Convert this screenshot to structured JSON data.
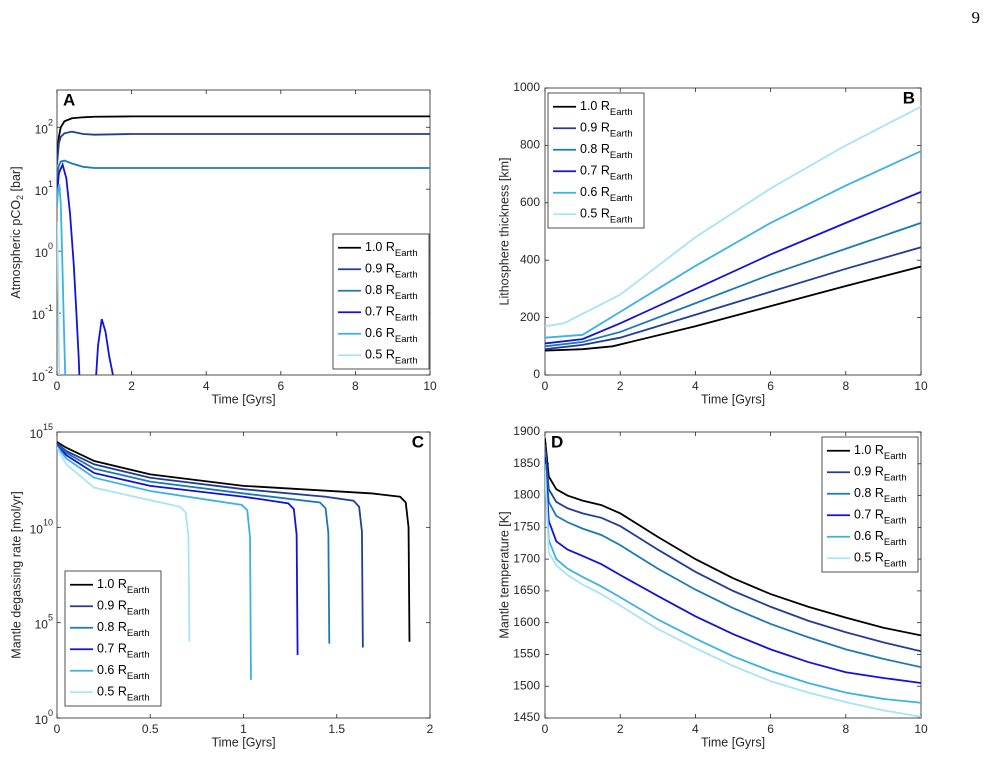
{
  "page_number": "9",
  "chart_data": [
    {
      "type": "line",
      "panel_label": "A",
      "yscale": "log",
      "legend": "southeast",
      "xlabel": "Time [Gyrs]",
      "ylabel": {
        "text": "Atmospheric pCO",
        "sub": "2",
        "tail": " [bar]"
      },
      "xlim": [
        0,
        10
      ],
      "xticks": [
        0,
        2,
        4,
        6,
        8,
        10
      ],
      "ylim": [
        0.01,
        400
      ],
      "yticks": [
        {
          "value": 0.01,
          "label": "10",
          "exponent": "-2"
        },
        {
          "value": 0.1,
          "label": "10",
          "exponent": "-1"
        },
        {
          "value": 1,
          "label": "10",
          "exponent": "0"
        },
        {
          "value": 10,
          "label": "10",
          "exponent": "1"
        },
        {
          "value": 100,
          "label": "10",
          "exponent": "2"
        }
      ],
      "series": [
        {
          "name": "1.0 R",
          "subscript": "Earth",
          "color": "#000000",
          "x": [
            0,
            0.05,
            0.1,
            0.2,
            0.4,
            0.7,
            1,
            2,
            4,
            6,
            8,
            10
          ],
          "values": [
            30,
            70,
            100,
            125,
            140,
            145,
            148,
            150,
            150,
            150,
            150,
            150
          ]
        },
        {
          "name": "0.9 R",
          "subscript": "Earth",
          "color": "#223c98",
          "x": [
            0,
            0.05,
            0.1,
            0.2,
            0.4,
            0.7,
            1,
            2,
            4,
            6,
            8,
            10
          ],
          "values": [
            25,
            55,
            70,
            80,
            85,
            78,
            76,
            78,
            78,
            78,
            78,
            78
          ]
        },
        {
          "name": "0.8 R",
          "subscript": "Earth",
          "color": "#1b79b5",
          "x": [
            0,
            0.05,
            0.1,
            0.2,
            0.4,
            0.7,
            1,
            2,
            4,
            6,
            8,
            10
          ],
          "values": [
            15,
            24,
            28,
            29,
            26,
            23,
            22,
            22,
            22,
            22,
            22,
            22
          ]
        },
        {
          "name": "0.7 R",
          "subscript": "Earth",
          "color": "#1212d8",
          "x": [
            0,
            0.05,
            0.15,
            0.25,
            0.35,
            0.45,
            0.52,
            0.58,
            0.6,
            0.9,
            1.05,
            1.1,
            1.2,
            1.3,
            1.4,
            1.5
          ],
          "values": [
            8,
            18,
            25,
            15,
            4,
            0.6,
            0.1,
            0.02,
            0.01,
            null,
            0.01,
            0.03,
            0.08,
            0.05,
            0.02,
            0.01
          ]
        },
        {
          "name": "0.6 R",
          "subscript": "Earth",
          "color": "#3cb2e4",
          "x": [
            0,
            0.03,
            0.06,
            0.1,
            0.14,
            0.18,
            0.22
          ],
          "values": [
            5,
            10,
            12,
            6,
            0.8,
            0.08,
            0.01
          ]
        },
        {
          "name": "0.5 R",
          "subscript": "Earth",
          "color": "#a9e3f7",
          "x": [
            0,
            0.02,
            0.04,
            0.06
          ],
          "values": [
            3,
            1,
            0.1,
            0.01
          ]
        }
      ]
    },
    {
      "type": "line",
      "panel_label": "B",
      "legend": "northwest",
      "xlabel": "Time [Gyrs]",
      "ylabel": "Lithosphere thickness [km]",
      "xlim": [
        0,
        10
      ],
      "xticks": [
        0,
        2,
        4,
        6,
        8,
        10
      ],
      "ylim": [
        0,
        1000
      ],
      "yticks": [
        0,
        200,
        400,
        600,
        800,
        1000
      ],
      "series": [
        {
          "name": "1.0 R",
          "subscript": "Earth",
          "color": "#000000",
          "x": [
            0,
            1,
            1.8,
            4,
            6,
            8,
            10
          ],
          "values": [
            85,
            90,
            100,
            170,
            240,
            310,
            378
          ]
        },
        {
          "name": "0.9 R",
          "subscript": "Earth",
          "color": "#223c98",
          "x": [
            0,
            1,
            2,
            4,
            6,
            8,
            10
          ],
          "values": [
            90,
            105,
            130,
            210,
            290,
            370,
            445
          ]
        },
        {
          "name": "0.8 R",
          "subscript": "Earth",
          "color": "#1b79b5",
          "x": [
            0,
            1,
            2,
            4,
            6,
            8,
            10
          ],
          "values": [
            100,
            115,
            150,
            250,
            350,
            440,
            530
          ]
        },
        {
          "name": "0.7 R",
          "subscript": "Earth",
          "color": "#1212d8",
          "x": [
            0,
            1,
            2,
            4,
            6,
            8,
            10
          ],
          "values": [
            110,
            125,
            180,
            300,
            420,
            530,
            638
          ]
        },
        {
          "name": "0.6 R",
          "subscript": "Earth",
          "color": "#3cb2e4",
          "x": [
            0,
            1,
            2,
            4,
            6,
            8,
            10
          ],
          "values": [
            130,
            140,
            220,
            380,
            530,
            660,
            780
          ]
        },
        {
          "name": "0.5 R",
          "subscript": "Earth",
          "color": "#a9e3f7",
          "x": [
            0,
            0.5,
            2,
            4,
            6,
            8,
            10
          ],
          "values": [
            170,
            180,
            280,
            480,
            650,
            800,
            935
          ]
        }
      ]
    },
    {
      "type": "line",
      "panel_label": "C",
      "yscale": "log",
      "legend": "southwest",
      "xlabel": "Time [Gyrs]",
      "ylabel": "Mantle degassing rate [mol/yr]",
      "xlim": [
        0,
        2
      ],
      "xticks": [
        0,
        0.5,
        1,
        1.5,
        2
      ],
      "ylim": [
        1,
        1000000000000000.0
      ],
      "yticks": [
        {
          "value": 1,
          "label": "10",
          "exponent": "0"
        },
        {
          "value": 100000,
          "label": "10",
          "exponent": "5"
        },
        {
          "value": 10000000000,
          "label": "10",
          "exponent": "10"
        },
        {
          "value": 1000000000000000.0,
          "label": "10",
          "exponent": "15"
        }
      ],
      "series": [
        {
          "name": "1.0 R",
          "subscript": "Earth",
          "color": "#000000",
          "x": [
            0,
            0.05,
            0.2,
            0.5,
            1.0,
            1.69,
            1.84,
            1.87,
            1.885,
            1.89
          ],
          "values": [
            300000000000000.0,
            150000000000000.0,
            30000000000000.0,
            6000000000000.0,
            1500000000000.0,
            600000000000.0,
            400000000000.0,
            200000000000.0,
            10000000000.0,
            10000
          ]
        },
        {
          "name": "0.9 R",
          "subscript": "Earth",
          "color": "#223c98",
          "x": [
            0,
            0.05,
            0.2,
            0.5,
            1.0,
            1.44,
            1.59,
            1.62,
            1.635,
            1.64
          ],
          "values": [
            250000000000000.0,
            100000000000000.0,
            20000000000000.0,
            4000000000000.0,
            1000000000000.0,
            400000000000.0,
            250000000000.0,
            120000000000.0,
            6000000000.0,
            5000
          ]
        },
        {
          "name": "0.8 R",
          "subscript": "Earth",
          "color": "#1b79b5",
          "x": [
            0,
            0.05,
            0.2,
            0.5,
            1.0,
            1.26,
            1.41,
            1.44,
            1.455,
            1.46
          ],
          "values": [
            220000000000000.0,
            80000000000000.0,
            12000000000000.0,
            2500000000000.0,
            600000000000.0,
            300000000000.0,
            200000000000.0,
            100000000000.0,
            5000000000.0,
            8000
          ]
        },
        {
          "name": "0.7 R",
          "subscript": "Earth",
          "color": "#1212d8",
          "x": [
            0,
            0.05,
            0.2,
            0.5,
            1.0,
            1.09,
            1.24,
            1.27,
            1.285,
            1.29
          ],
          "values": [
            200000000000000.0,
            60000000000000.0,
            7000000000000.0,
            1500000000000.0,
            400000000000.0,
            300000000000.0,
            180000000000.0,
            90000000000.0,
            4000000000.0,
            2000
          ]
        },
        {
          "name": "0.6 R",
          "subscript": "Earth",
          "color": "#3cb2e4",
          "x": [
            0,
            0.05,
            0.2,
            0.5,
            0.84,
            0.99,
            1.02,
            1.035,
            1.04
          ],
          "values": [
            180000000000000.0,
            40000000000000.0,
            4000000000000.0,
            800000000000.0,
            250000000000.0,
            150000000000.0,
            80000000000.0,
            3000000000.0,
            100
          ]
        },
        {
          "name": "0.5 R",
          "subscript": "Earth",
          "color": "#a9e3f7",
          "x": [
            0,
            0.05,
            0.2,
            0.51,
            0.66,
            0.69,
            0.705,
            0.71
          ],
          "values": [
            150000000000000.0,
            20000000000000.0,
            1200000000000.0,
            250000000000.0,
            120000000000.0,
            60000000000.0,
            3000000000.0,
            10000
          ]
        }
      ]
    },
    {
      "type": "line",
      "panel_label": "D",
      "legend": "northeast",
      "xlabel": "Time [Gyrs]",
      "ylabel": "Mantle temperature [K]",
      "xlim": [
        0,
        10
      ],
      "xticks": [
        0,
        2,
        4,
        6,
        8,
        10
      ],
      "ylim": [
        1450,
        1900
      ],
      "yticks": [
        1450,
        1500,
        1550,
        1600,
        1650,
        1700,
        1750,
        1800,
        1850,
        1900
      ],
      "series": [
        {
          "name": "1.0 R",
          "subscript": "Earth",
          "color": "#000000",
          "x": [
            0,
            0.1,
            0.3,
            0.6,
            1,
            1.5,
            2,
            3,
            4,
            5,
            6,
            7,
            8,
            9,
            10
          ],
          "values": [
            1890,
            1830,
            1810,
            1800,
            1792,
            1785,
            1772,
            1735,
            1700,
            1670,
            1645,
            1625,
            1608,
            1592,
            1580
          ]
        },
        {
          "name": "0.9 R",
          "subscript": "Earth",
          "color": "#223c98",
          "x": [
            0,
            0.1,
            0.3,
            0.6,
            1,
            1.5,
            2,
            3,
            4,
            5,
            6,
            7,
            8,
            9,
            10
          ],
          "values": [
            1880,
            1810,
            1790,
            1780,
            1772,
            1765,
            1752,
            1715,
            1680,
            1650,
            1625,
            1603,
            1585,
            1569,
            1555
          ]
        },
        {
          "name": "0.8 R",
          "subscript": "Earth",
          "color": "#1b79b5",
          "x": [
            0,
            0.1,
            0.3,
            0.6,
            1,
            1.5,
            2,
            3,
            4,
            5,
            6,
            7,
            8,
            9,
            10
          ],
          "values": [
            1870,
            1790,
            1768,
            1758,
            1748,
            1738,
            1722,
            1685,
            1652,
            1623,
            1598,
            1577,
            1558,
            1543,
            1530
          ]
        },
        {
          "name": "0.7 R",
          "subscript": "Earth",
          "color": "#1212d8",
          "x": [
            0,
            0.1,
            0.3,
            0.6,
            1,
            1.5,
            2,
            3,
            4,
            5,
            6,
            7,
            8,
            9,
            10
          ],
          "values": [
            1860,
            1760,
            1728,
            1715,
            1705,
            1692,
            1675,
            1642,
            1610,
            1582,
            1558,
            1538,
            1522,
            1513,
            1505
          ]
        },
        {
          "name": "0.6 R",
          "subscript": "Earth",
          "color": "#3cb2e4",
          "x": [
            0,
            0.1,
            0.3,
            0.6,
            1,
            1.5,
            2,
            3,
            4,
            5,
            6,
            7,
            8,
            9,
            10
          ],
          "values": [
            1850,
            1730,
            1700,
            1685,
            1672,
            1657,
            1640,
            1605,
            1575,
            1547,
            1524,
            1505,
            1490,
            1480,
            1474
          ]
        },
        {
          "name": "0.5 R",
          "subscript": "Earth",
          "color": "#a9e3f7",
          "x": [
            0,
            0.1,
            0.3,
            0.6,
            1,
            1.5,
            2,
            3,
            4,
            5,
            6,
            7,
            8,
            9,
            10
          ],
          "values": [
            1840,
            1710,
            1690,
            1675,
            1660,
            1645,
            1627,
            1590,
            1560,
            1532,
            1508,
            1490,
            1475,
            1462,
            1452
          ]
        }
      ]
    }
  ]
}
